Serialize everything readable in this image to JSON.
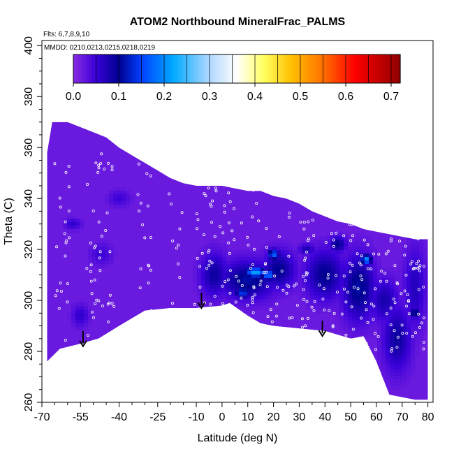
{
  "chart_data": {
    "type": "heatmap",
    "title": "ATOM2 Northbound MineralFrac_PALMS",
    "annotations": [
      "Flts: 6,7,8,9,10",
      "MMDD: 0210,0213,0215,0218,0219"
    ],
    "xlabel": "Latitude (deg N)",
    "ylabel": "Theta (C)",
    "xlim": [
      -70,
      82
    ],
    "ylim": [
      260,
      402
    ],
    "x_ticks": [
      -70,
      -55,
      -40,
      -25,
      -10,
      0,
      10,
      20,
      30,
      40,
      50,
      60,
      70,
      80
    ],
    "y_ticks": [
      260,
      280,
      300,
      320,
      340,
      360,
      380,
      400
    ],
    "colorbar": {
      "range": [
        0.0,
        0.72
      ],
      "ticks": [
        0.0,
        0.1,
        0.2,
        0.3,
        0.4,
        0.5,
        0.6,
        0.7
      ],
      "placement": "top-inset",
      "stops": [
        {
          "value": 0.0,
          "color": "#8a2be2"
        },
        {
          "value": 0.05,
          "color": "#3a00d8"
        },
        {
          "value": 0.1,
          "color": "#000090"
        },
        {
          "value": 0.15,
          "color": "#0040ff"
        },
        {
          "value": 0.22,
          "color": "#00aaff"
        },
        {
          "value": 0.3,
          "color": "#b0d8ff"
        },
        {
          "value": 0.36,
          "color": "#ffffff"
        },
        {
          "value": 0.42,
          "color": "#ffff60"
        },
        {
          "value": 0.48,
          "color": "#ffc000"
        },
        {
          "value": 0.55,
          "color": "#ff7000"
        },
        {
          "value": 0.62,
          "color": "#ff0000"
        },
        {
          "value": 0.72,
          "color": "#900000"
        }
      ]
    },
    "field": {
      "background_value": 0.02,
      "upper_boundary": [
        [
          -68,
          358
        ],
        [
          -66,
          370
        ],
        [
          -60,
          370
        ],
        [
          -55,
          368
        ],
        [
          -50,
          366
        ],
        [
          -45,
          364
        ],
        [
          -40,
          360
        ],
        [
          -35,
          357
        ],
        [
          -30,
          354
        ],
        [
          -25,
          351
        ],
        [
          -20,
          348
        ],
        [
          -15,
          346
        ],
        [
          -10,
          345
        ],
        [
          -5,
          345
        ],
        [
          0,
          345
        ],
        [
          5,
          344
        ],
        [
          10,
          343
        ],
        [
          15,
          343
        ],
        [
          20,
          341
        ],
        [
          25,
          340
        ],
        [
          30,
          338
        ],
        [
          35,
          335
        ],
        [
          40,
          333
        ],
        [
          45,
          331
        ],
        [
          50,
          330
        ],
        [
          55,
          328
        ],
        [
          60,
          327
        ],
        [
          65,
          326
        ],
        [
          70,
          325
        ],
        [
          75,
          324
        ],
        [
          80,
          324
        ]
      ],
      "lower_boundary": [
        [
          -68,
          276
        ],
        [
          -63,
          281
        ],
        [
          -55,
          283
        ],
        [
          -48,
          285
        ],
        [
          -40,
          290
        ],
        [
          -30,
          296
        ],
        [
          -20,
          297
        ],
        [
          -10,
          297
        ],
        [
          0,
          298
        ],
        [
          3,
          299
        ],
        [
          10,
          294
        ],
        [
          15,
          291
        ],
        [
          20,
          290
        ],
        [
          30,
          289
        ],
        [
          40,
          288
        ],
        [
          50,
          285
        ],
        [
          55,
          286
        ],
        [
          60,
          276
        ],
        [
          65,
          263
        ],
        [
          70,
          262
        ],
        [
          75,
          261
        ],
        [
          80,
          261
        ]
      ],
      "blobs": [
        {
          "x": 10,
          "y": 308,
          "rx": 10,
          "ry": 7,
          "value": 0.11
        },
        {
          "x": -3,
          "y": 310,
          "rx": 5,
          "ry": 8,
          "value": 0.09
        },
        {
          "x": 22,
          "y": 312,
          "rx": 6,
          "ry": 7,
          "value": 0.1
        },
        {
          "x": 40,
          "y": 310,
          "rx": 7,
          "ry": 9,
          "value": 0.1
        },
        {
          "x": 53,
          "y": 305,
          "rx": 6,
          "ry": 12,
          "value": 0.11
        },
        {
          "x": 63,
          "y": 300,
          "rx": 5,
          "ry": 8,
          "value": 0.08
        },
        {
          "x": 68,
          "y": 285,
          "rx": 5,
          "ry": 12,
          "value": 0.09
        },
        {
          "x": 75,
          "y": 305,
          "rx": 4,
          "ry": 15,
          "value": 0.07
        },
        {
          "x": 13,
          "y": 311,
          "rx": 4,
          "ry": 2,
          "value": 0.22
        },
        {
          "x": 18,
          "y": 310,
          "rx": 2,
          "ry": 2,
          "value": 0.2
        },
        {
          "x": 56,
          "y": 316,
          "rx": 2,
          "ry": 2,
          "value": 0.2
        },
        {
          "x": 20,
          "y": 318,
          "rx": 2,
          "ry": 2,
          "value": 0.18
        },
        {
          "x": 8,
          "y": 303,
          "rx": 3,
          "ry": 2,
          "value": 0.15
        },
        {
          "x": 45,
          "y": 322,
          "rx": 3,
          "ry": 3,
          "value": 0.1
        },
        {
          "x": -47,
          "y": 318,
          "rx": 4,
          "ry": 4,
          "value": 0.05
        },
        {
          "x": -40,
          "y": 340,
          "rx": 4,
          "ry": 3,
          "value": 0.05
        },
        {
          "x": -55,
          "y": 294,
          "rx": 3,
          "ry": 4,
          "value": 0.06
        },
        {
          "x": -58,
          "y": 330,
          "rx": 3,
          "ry": 2,
          "value": 0.06
        },
        {
          "x": 33,
          "y": 320,
          "rx": 3,
          "ry": 2,
          "value": 0.08
        },
        {
          "x": 75,
          "y": 295,
          "rx": 2,
          "ry": 2,
          "value": 0.12
        }
      ],
      "arrows": [
        {
          "x": -54,
          "y_top": 288,
          "y_tip": 282
        },
        {
          "x": -8,
          "y_top": 303,
          "y_tip": 297
        },
        {
          "x": 39,
          "y_top": 292,
          "y_tip": 286
        }
      ]
    }
  }
}
